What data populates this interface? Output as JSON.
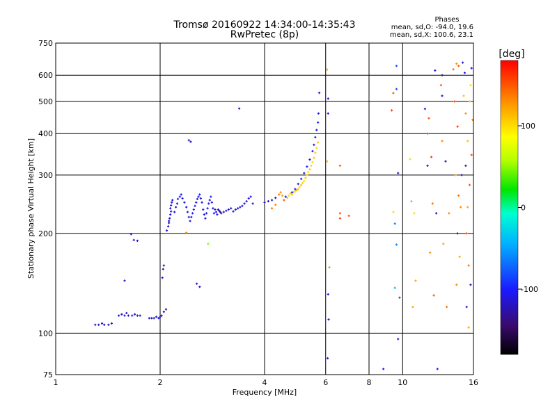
{
  "chart_data": {
    "type": "scatter",
    "title": "Tromsø 20160922 14:34:00-14:35:43",
    "subtitle": "RwPretec (8p)",
    "xlabel": "Frequency [MHz]",
    "ylabel": "Stationary phase Virtual Height [km]",
    "xscale": "log",
    "yscale": "log",
    "xlim": [
      1,
      16
    ],
    "ylim": [
      75,
      750
    ],
    "x_ticks": [
      1,
      2,
      4,
      6,
      8,
      10,
      16
    ],
    "y_ticks": [
      75,
      100,
      200,
      300,
      400,
      500,
      600,
      750
    ],
    "grid": true,
    "stats": {
      "heading": "Phases",
      "line_o": "mean, sd,O: -94.0, 19.6",
      "line_x": "mean, sd,X: 100.6, 23.1"
    },
    "colorbar": {
      "label": "[deg]",
      "range": [
        -180,
        180
      ],
      "ticks": [
        100,
        0,
        -100
      ]
    },
    "series": [
      {
        "points": [
          [
            1.3,
            106,
            -115
          ],
          [
            1.33,
            106,
            -110
          ],
          [
            1.36,
            107,
            -120
          ],
          [
            1.38,
            106,
            -112
          ],
          [
            1.42,
            106,
            -118
          ],
          [
            1.45,
            107,
            -108
          ],
          [
            1.52,
            113,
            -112
          ],
          [
            1.55,
            114,
            -118
          ],
          [
            1.58,
            113,
            -110
          ],
          [
            1.6,
            115,
            -115
          ],
          [
            1.62,
            113,
            -120
          ],
          [
            1.66,
            113,
            -110
          ],
          [
            1.69,
            114,
            -112
          ],
          [
            1.72,
            113,
            -118
          ],
          [
            1.75,
            113,
            -114
          ],
          [
            1.58,
            144,
            -110
          ],
          [
            1.65,
            199,
            -115
          ],
          [
            1.68,
            191,
            -118
          ],
          [
            1.72,
            190,
            -112
          ],
          [
            1.86,
            111,
            -110
          ],
          [
            1.89,
            111,
            -115
          ],
          [
            1.92,
            111,
            -118
          ],
          [
            1.95,
            112,
            -112
          ],
          [
            1.98,
            111,
            -110
          ],
          [
            2.0,
            112,
            -115
          ],
          [
            2.02,
            113,
            -118
          ],
          [
            2.05,
            116,
            -112
          ],
          [
            2.08,
            118,
            -110
          ],
          [
            2.03,
            147,
            -110
          ],
          [
            2.04,
            156,
            -115
          ],
          [
            2.05,
            160,
            -120
          ],
          [
            2.09,
            204,
            -118
          ],
          [
            2.11,
            210,
            -120
          ],
          [
            2.12,
            215,
            -118
          ],
          [
            2.12,
            218,
            -116
          ],
          [
            2.13,
            222,
            -115
          ],
          [
            2.14,
            228,
            -112
          ],
          [
            2.15,
            233,
            -110
          ],
          [
            2.14,
            238,
            -112
          ],
          [
            2.15,
            243,
            -110
          ],
          [
            2.16,
            248,
            -108
          ],
          [
            2.17,
            252,
            -112
          ],
          [
            2.2,
            232,
            -108
          ],
          [
            2.22,
            240,
            -110
          ],
          [
            2.24,
            246,
            -112
          ],
          [
            2.25,
            254,
            -100
          ],
          [
            2.28,
            258,
            -105
          ],
          [
            2.3,
            262,
            -100
          ],
          [
            2.32,
            255,
            -110
          ],
          [
            2.35,
            248,
            -112
          ],
          [
            2.38,
            240,
            -108
          ],
          [
            2.4,
            232,
            -105
          ],
          [
            2.42,
            224,
            -115
          ],
          [
            2.44,
            218,
            -110
          ],
          [
            2.46,
            224,
            -112
          ],
          [
            2.48,
            230,
            -100
          ],
          [
            2.5,
            236,
            -100
          ],
          [
            2.52,
            242,
            -105
          ],
          [
            2.54,
            248,
            -110
          ],
          [
            2.56,
            254,
            -100
          ],
          [
            2.58,
            258,
            -108
          ],
          [
            2.6,
            262,
            -100
          ],
          [
            2.62,
            255,
            -112
          ],
          [
            2.64,
            248,
            -110
          ],
          [
            2.66,
            236,
            -100
          ],
          [
            2.68,
            228,
            -105
          ],
          [
            2.7,
            222,
            -112
          ],
          [
            2.72,
            230,
            -108
          ],
          [
            2.74,
            238,
            -100
          ],
          [
            2.76,
            246,
            -105
          ],
          [
            2.78,
            252,
            -110
          ],
          [
            2.8,
            258,
            -100
          ],
          [
            2.82,
            248,
            -112
          ],
          [
            2.84,
            238,
            -108
          ],
          [
            2.86,
            230,
            -105
          ],
          [
            2.88,
            236,
            -110
          ],
          [
            2.9,
            232,
            -112
          ],
          [
            2.92,
            228,
            -110
          ],
          [
            2.94,
            236,
            -108
          ],
          [
            2.96,
            234,
            -130
          ],
          [
            2.98,
            232,
            -135
          ],
          [
            3.0,
            230,
            -112
          ],
          [
            3.05,
            232,
            -115
          ],
          [
            3.1,
            234,
            -110
          ],
          [
            3.15,
            236,
            -112
          ],
          [
            3.2,
            238,
            -115
          ],
          [
            3.25,
            233,
            -110
          ],
          [
            3.3,
            236,
            -112
          ],
          [
            3.35,
            238,
            -108
          ],
          [
            3.4,
            240,
            -110
          ],
          [
            3.45,
            242,
            -112
          ],
          [
            3.5,
            246,
            -115
          ],
          [
            3.55,
            250,
            -110
          ],
          [
            3.6,
            255,
            -108
          ],
          [
            3.65,
            258,
            -105
          ],
          [
            3.7,
            246,
            -110
          ],
          [
            2.42,
            382,
            -110
          ],
          [
            2.45,
            378,
            -112
          ],
          [
            2.55,
            141,
            -115
          ],
          [
            2.6,
            138,
            -118
          ],
          [
            2.38,
            201,
            130
          ],
          [
            2.75,
            186,
            50
          ],
          [
            3.38,
            476,
            -115
          ],
          [
            4.0,
            248,
            -110
          ],
          [
            4.1,
            250,
            -112
          ],
          [
            4.2,
            252,
            -115
          ],
          [
            4.3,
            256,
            -110
          ],
          [
            4.4,
            262,
            140
          ],
          [
            4.45,
            266,
            130
          ],
          [
            4.5,
            260,
            120
          ],
          [
            4.55,
            252,
            150
          ],
          [
            4.6,
            258,
            -110
          ],
          [
            4.65,
            256,
            110
          ],
          [
            4.7,
            260,
            100
          ],
          [
            4.75,
            264,
            105
          ],
          [
            4.8,
            262,
            110
          ],
          [
            4.85,
            266,
            105
          ],
          [
            4.9,
            268,
            100
          ],
          [
            4.95,
            270,
            110
          ],
          [
            5.0,
            272,
            105
          ],
          [
            5.05,
            276,
            100
          ],
          [
            5.1,
            280,
            110
          ],
          [
            5.15,
            284,
            105
          ],
          [
            5.2,
            288,
            100
          ],
          [
            5.25,
            294,
            108
          ],
          [
            5.3,
            300,
            105
          ],
          [
            5.35,
            306,
            100
          ],
          [
            5.4,
            312,
            110
          ],
          [
            5.45,
            320,
            105
          ],
          [
            5.5,
            328,
            100
          ],
          [
            5.55,
            338,
            108
          ],
          [
            5.6,
            350,
            105
          ],
          [
            5.65,
            362,
            100
          ],
          [
            5.7,
            376,
            110
          ],
          [
            4.8,
            266,
            -100
          ],
          [
            4.9,
            272,
            -100
          ],
          [
            5.0,
            282,
            -105
          ],
          [
            5.1,
            292,
            -100
          ],
          [
            5.2,
            304,
            -108
          ],
          [
            5.3,
            318,
            -100
          ],
          [
            5.4,
            334,
            -105
          ],
          [
            5.5,
            354,
            -100
          ],
          [
            5.55,
            370,
            -108
          ],
          [
            5.6,
            390,
            -100
          ],
          [
            5.65,
            410,
            -105
          ],
          [
            5.7,
            432,
            -100
          ],
          [
            5.72,
            460,
            -110
          ],
          [
            5.75,
            531,
            -110
          ],
          [
            4.2,
            238,
            140
          ],
          [
            4.3,
            244,
            130
          ],
          [
            6.05,
            624,
            130
          ],
          [
            6.1,
            510,
            -115
          ],
          [
            6.1,
            460,
            -100
          ],
          [
            6.05,
            330,
            120
          ],
          [
            6.1,
            131,
            -110
          ],
          [
            6.12,
            110,
            -110
          ],
          [
            6.08,
            84,
            -120
          ],
          [
            6.15,
            158,
            130
          ],
          [
            6.6,
            320,
            150
          ],
          [
            6.6,
            230,
            150
          ],
          [
            6.6,
            222,
            160
          ],
          [
            7.0,
            226,
            150
          ],
          [
            8.8,
            78,
            -100
          ],
          [
            9.3,
            470,
            160
          ],
          [
            9.4,
            530,
            150
          ],
          [
            9.6,
            640,
            -80
          ],
          [
            9.6,
            545,
            -80
          ],
          [
            9.7,
            304,
            -110
          ],
          [
            9.8,
            128,
            -80
          ],
          [
            9.7,
            96,
            -110
          ],
          [
            9.6,
            185,
            -60
          ],
          [
            9.4,
            232,
            100
          ],
          [
            9.5,
            214,
            -60
          ],
          [
            9.5,
            137,
            -40
          ],
          [
            10.5,
            335,
            100
          ],
          [
            10.6,
            250,
            120
          ],
          [
            10.8,
            230,
            100
          ],
          [
            10.9,
            144,
            120
          ],
          [
            10.7,
            120,
            120
          ],
          [
            11.6,
            475,
            -110
          ],
          [
            11.9,
            445,
            150
          ],
          [
            11.8,
            400,
            150
          ],
          [
            12.1,
            340,
            160
          ],
          [
            11.8,
            320,
            -110
          ],
          [
            12.2,
            246,
            140
          ],
          [
            12.5,
            230,
            -120
          ],
          [
            12.0,
            175,
            130
          ],
          [
            12.3,
            130,
            150
          ],
          [
            12.4,
            620,
            -110
          ],
          [
            13.0,
            600,
            -140
          ],
          [
            12.9,
            560,
            150
          ],
          [
            13.0,
            520,
            -110
          ],
          [
            13.0,
            380,
            130
          ],
          [
            13.3,
            330,
            -130
          ],
          [
            13.6,
            230,
            130
          ],
          [
            12.6,
            78,
            -100
          ],
          [
            13.1,
            186,
            120
          ],
          [
            14.0,
            625,
            140
          ],
          [
            14.3,
            650,
            130
          ],
          [
            14.5,
            640,
            150
          ],
          [
            14.1,
            500,
            150
          ],
          [
            14.4,
            420,
            160
          ],
          [
            14.2,
            300,
            120
          ],
          [
            14.5,
            260,
            140
          ],
          [
            14.7,
            240,
            130
          ],
          [
            14.4,
            200,
            -110
          ],
          [
            14.6,
            170,
            120
          ],
          [
            14.3,
            140,
            130
          ],
          [
            14.9,
            655,
            -110
          ],
          [
            15.1,
            610,
            -110
          ],
          [
            15.0,
            520,
            110
          ],
          [
            15.2,
            460,
            130
          ],
          [
            15.4,
            380,
            110
          ],
          [
            15.2,
            320,
            -110
          ],
          [
            15.6,
            280,
            150
          ],
          [
            15.4,
            240,
            120
          ],
          [
            15.3,
            200,
            150
          ],
          [
            15.5,
            160,
            140
          ],
          [
            15.7,
            140,
            -120
          ],
          [
            15.5,
            104,
            120
          ],
          [
            15.8,
            630,
            -110
          ],
          [
            15.7,
            560,
            100
          ],
          [
            15.6,
            500,
            110
          ],
          [
            15.9,
            440,
            130
          ],
          [
            15.3,
            120,
            -110
          ],
          [
            13.4,
            120,
            140
          ],
          [
            14.8,
            300,
            -130
          ],
          [
            15.8,
            345,
            150
          ]
        ]
      }
    ]
  }
}
